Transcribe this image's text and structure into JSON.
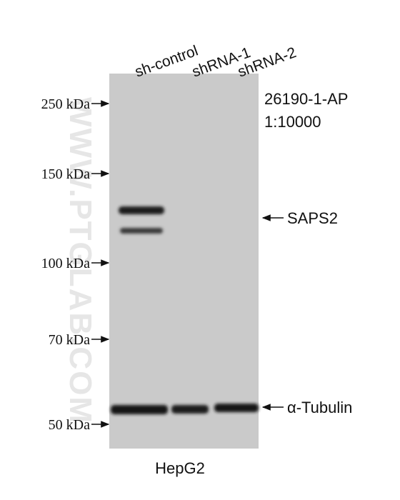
{
  "watermark": "WWW.PTGLAB.COM",
  "lanes": [
    "sh-control",
    "shRNA-1",
    "shRNA-2"
  ],
  "markers": [
    {
      "label": "250 kDa"
    },
    {
      "label": "150 kDa"
    },
    {
      "label": "100 kDa"
    },
    {
      "label": "70 kDa"
    },
    {
      "label": "50 kDa"
    }
  ],
  "antibody": {
    "catalog": "26190-1-AP",
    "dilution": "1:10000"
  },
  "bands": [
    {
      "label": "SAPS2"
    },
    {
      "label": "α-Tubulin"
    }
  ],
  "sample": "HepG2"
}
